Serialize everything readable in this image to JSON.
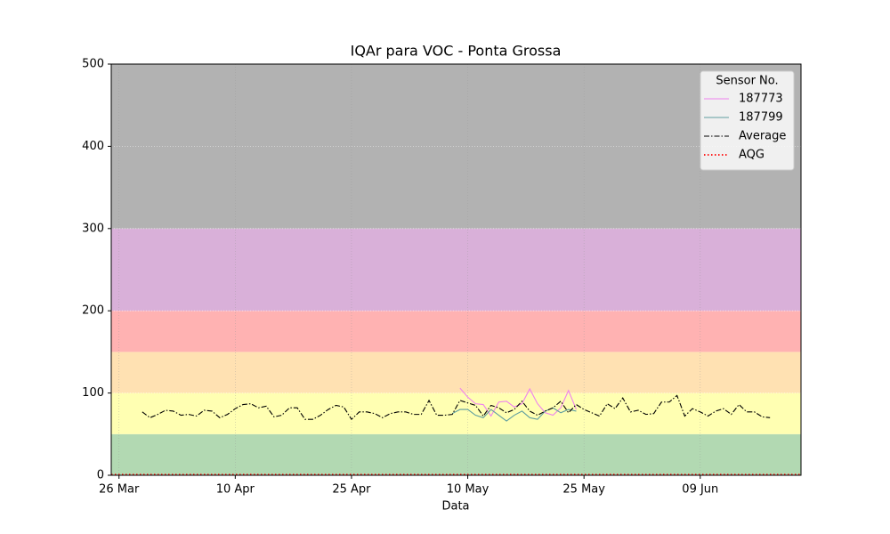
{
  "chart_data": {
    "type": "line",
    "title": "IQAr para VOC - Ponta Grossa",
    "x_label": "Data",
    "legend_title": "Sensor No.",
    "legend_position": "upper right",
    "grid": true,
    "x": [
      "29 Mar",
      "30 Mar",
      "31 Mar",
      "01 Apr",
      "02 Apr",
      "03 Apr",
      "04 Apr",
      "05 Apr",
      "06 Apr",
      "07 Apr",
      "08 Apr",
      "09 Apr",
      "10 Apr",
      "11 Apr",
      "12 Apr",
      "13 Apr",
      "14 Apr",
      "15 Apr",
      "16 Apr",
      "17 Apr",
      "18 Apr",
      "19 Apr",
      "20 Apr",
      "21 Apr",
      "22 Apr",
      "23 Apr",
      "24 Apr",
      "25 Apr",
      "26 Apr",
      "27 Apr",
      "28 Apr",
      "29 Apr",
      "30 Apr",
      "01 May",
      "02 May",
      "03 May",
      "04 May",
      "05 May",
      "06 May",
      "07 May",
      "08 May",
      "09 May",
      "10 May",
      "11 May",
      "12 May",
      "13 May",
      "14 May",
      "15 May",
      "16 May",
      "17 May",
      "18 May",
      "19 May",
      "20 May",
      "21 May",
      "22 May",
      "23 May",
      "24 May",
      "25 May",
      "26 May",
      "27 May",
      "28 May",
      "29 May",
      "30 May",
      "31 May",
      "01 Jun",
      "02 Jun",
      "03 Jun",
      "04 Jun",
      "05 Jun",
      "06 Jun",
      "07 Jun",
      "08 Jun",
      "09 Jun",
      "10 Jun",
      "11 Jun",
      "12 Jun",
      "13 Jun",
      "14 Jun",
      "15 Jun",
      "16 Jun",
      "17 Jun",
      "18 Jun"
    ],
    "xlim": [
      "25 Mar",
      "22 Jun"
    ],
    "xticks": [
      "26 Mar",
      "10 Apr",
      "25 Apr",
      "10 May",
      "25 May",
      "09 Jun"
    ],
    "ylim": [
      0,
      500
    ],
    "yticks": [
      0,
      100,
      200,
      300,
      400,
      500
    ],
    "bands": [
      {
        "from": 0,
        "to": 50,
        "color": "#b2d9b2"
      },
      {
        "from": 50,
        "to": 100,
        "color": "#ffffb2"
      },
      {
        "from": 100,
        "to": 150,
        "color": "#ffe1b2"
      },
      {
        "from": 150,
        "to": 200,
        "color": "#ffb2b2"
      },
      {
        "from": 200,
        "to": 300,
        "color": "#d9b0d9"
      },
      {
        "from": 300,
        "to": 500,
        "color": "#b2b2b2"
      }
    ],
    "series": [
      {
        "name": "187773",
        "color": "#ee82ee",
        "linestyle": "solid",
        "values": [
          null,
          null,
          null,
          null,
          null,
          null,
          null,
          null,
          null,
          null,
          null,
          null,
          null,
          null,
          null,
          null,
          null,
          null,
          null,
          null,
          null,
          null,
          null,
          null,
          null,
          null,
          null,
          null,
          null,
          null,
          null,
          null,
          null,
          null,
          null,
          null,
          null,
          null,
          null,
          null,
          null,
          106,
          95,
          87,
          86,
          72,
          89,
          90,
          83,
          87,
          105,
          87,
          76,
          73,
          82,
          103,
          80,
          null,
          null,
          null,
          null,
          null,
          null,
          null,
          null,
          null,
          null,
          null,
          null,
          null,
          null,
          null,
          null,
          null,
          null,
          null,
          null,
          null,
          null,
          null,
          null,
          null
        ]
      },
      {
        "name": "187799",
        "color": "#5f9ea0",
        "linestyle": "solid",
        "values": [
          null,
          null,
          null,
          null,
          null,
          null,
          null,
          null,
          null,
          null,
          null,
          null,
          null,
          null,
          null,
          null,
          null,
          null,
          null,
          null,
          null,
          null,
          null,
          null,
          null,
          null,
          null,
          null,
          null,
          null,
          null,
          null,
          null,
          null,
          null,
          null,
          null,
          null,
          null,
          null,
          75,
          80,
          80,
          73,
          70,
          80,
          73,
          66,
          73,
          78,
          70,
          68,
          78,
          82,
          76,
          80,
          78,
          null,
          null,
          null,
          null,
          null,
          null,
          null,
          null,
          null,
          null,
          null,
          null,
          null,
          null,
          null,
          null,
          null,
          null,
          null,
          null,
          null,
          null,
          null,
          null,
          null
        ]
      },
      {
        "name": "Average",
        "color": "#000000",
        "linestyle": "dashdot",
        "values": [
          77,
          70,
          74,
          79,
          78,
          73,
          74,
          72,
          79,
          78,
          70,
          74,
          81,
          86,
          87,
          82,
          84,
          71,
          73,
          82,
          82,
          68,
          68,
          73,
          80,
          85,
          83,
          68,
          77,
          77,
          75,
          70,
          75,
          77,
          77,
          74,
          74,
          91,
          73,
          73,
          74,
          91,
          88,
          85,
          72,
          85,
          82,
          76,
          80,
          90,
          78,
          73,
          78,
          82,
          90,
          76,
          86,
          80,
          76,
          72,
          87,
          81,
          94,
          77,
          79,
          74,
          75,
          89,
          89,
          97,
          72,
          81,
          77,
          72,
          78,
          81,
          74,
          86,
          77,
          77,
          71,
          70
        ]
      }
    ],
    "reference_lines": [
      {
        "name": "AQG",
        "color": "#ff0000",
        "linestyle": "dotted",
        "value": 1
      }
    ]
  }
}
